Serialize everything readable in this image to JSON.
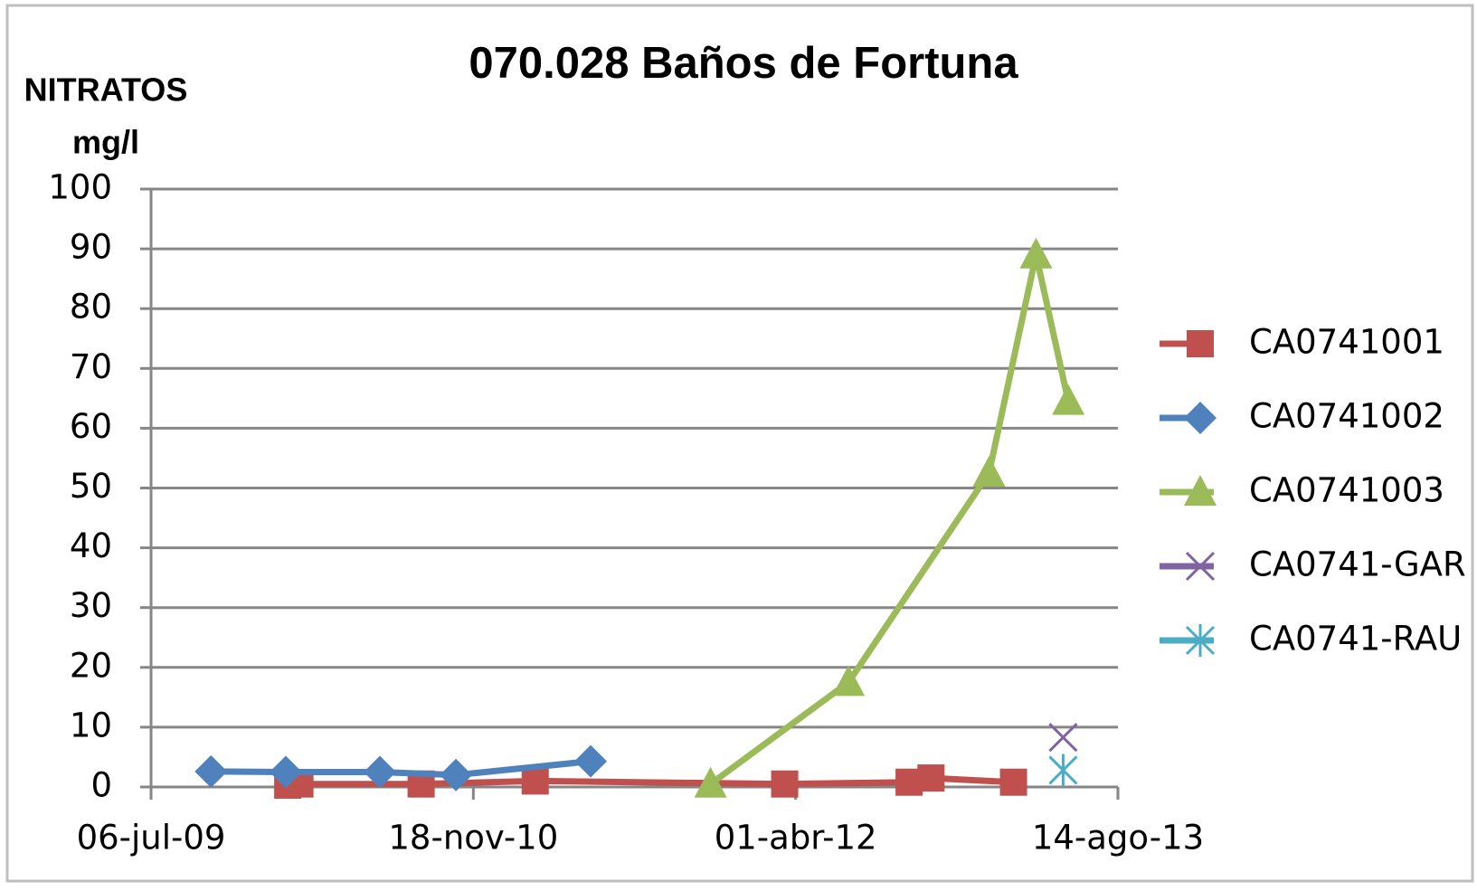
{
  "chart_data": {
    "type": "line",
    "title": "070.028 Baños de Fortuna",
    "y_label_lines": [
      "NITRATOS",
      "mg/l"
    ],
    "xlim": [
      40000,
      41500
    ],
    "xticks": [
      {
        "value": 40000,
        "label": "06-jul-09"
      },
      {
        "value": 40500,
        "label": "18-nov-10"
      },
      {
        "value": 41000,
        "label": "01-abr-12"
      },
      {
        "value": 41500,
        "label": "14-ago-13"
      }
    ],
    "ylim": [
      0,
      100
    ],
    "yticks": [
      0,
      10,
      20,
      30,
      40,
      50,
      60,
      70,
      80,
      90,
      100
    ],
    "grid": true,
    "legend": "right",
    "series": [
      {
        "name": "CA0741001",
        "color": "#c0504d",
        "marker": "square",
        "x": [
          40212,
          40231,
          40419,
          40596,
          40983,
          41176,
          41210,
          41338
        ],
        "values": [
          0.3,
          0.5,
          0.5,
          1,
          0.5,
          0.8,
          1.5,
          0.8
        ]
      },
      {
        "name": "CA0741002",
        "color": "#4f81bd",
        "marker": "diamond",
        "x": [
          40093,
          40209,
          40355,
          40473,
          40682
        ],
        "values": [
          2.6,
          2.5,
          2.5,
          2.0,
          4.3
        ]
      },
      {
        "name": "CA0741003",
        "color": "#9bbb59",
        "marker": "triangle",
        "x": [
          40868,
          41082,
          41300,
          41373,
          41423
        ],
        "values": [
          0.5,
          17.5,
          52.5,
          89,
          64.5
        ]
      },
      {
        "name": "CA0741-GAR",
        "color": "#8064a2",
        "marker": "x",
        "x": [
          41415
        ],
        "values": [
          8.3
        ]
      },
      {
        "name": "CA0741-RAU",
        "color": "#4bacc6",
        "marker": "star",
        "x": [
          41415
        ],
        "values": [
          2.8
        ]
      }
    ]
  }
}
